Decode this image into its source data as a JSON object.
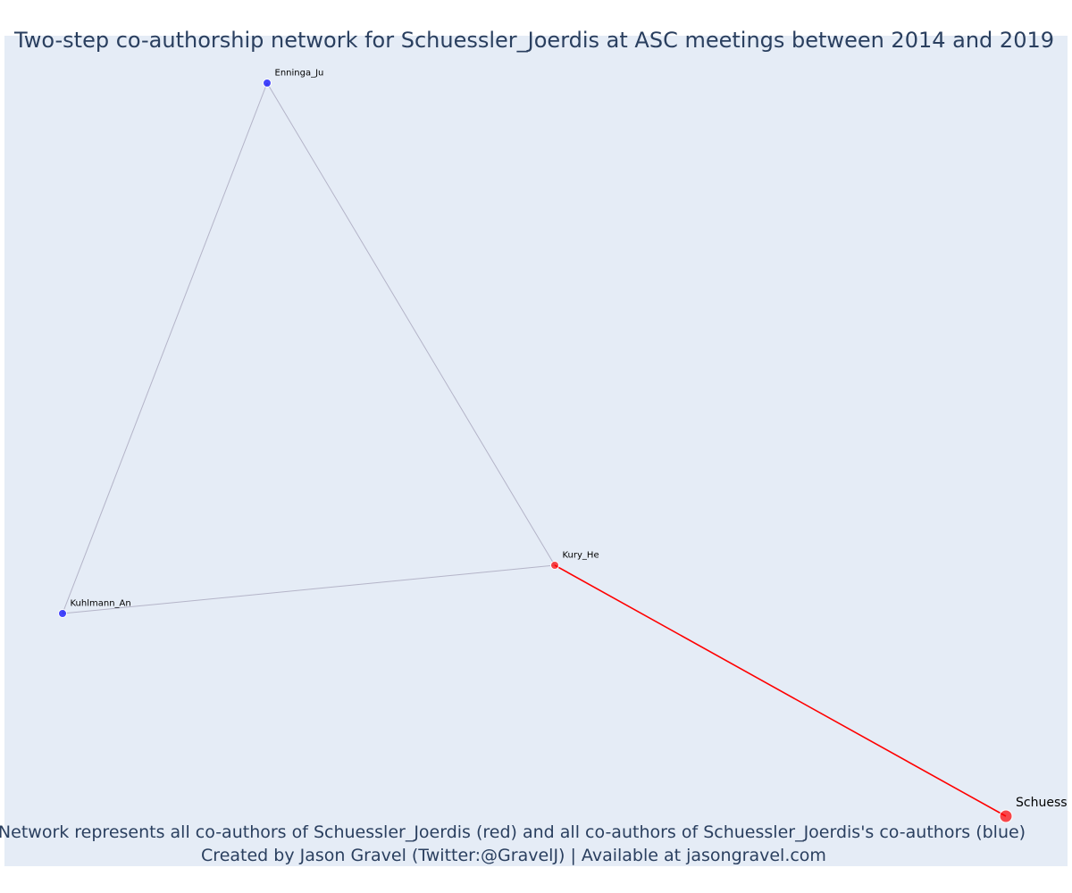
{
  "title": "Two-step co-authorship network for Schuessler_Joerdis at ASC meetings between 2014 and 2019",
  "caption": {
    "line1": "Network represents all co-authors of Schuessler_Joerdis (red) and all co-authors of Schuessler_Joerdis's co-authors (blue)",
    "line2": "Created by Jason Gravel (Twitter:@GravelJ) | Available at jasongravel.com"
  },
  "colors": {
    "plot_background": "#e5ecf6",
    "title_text": "#2a3f5f",
    "red_node": "#ff0000",
    "blue_node": "#0000ff",
    "red_edge": "#ff0000",
    "gray_edge": "#b4b4c8"
  },
  "nodes": [
    {
      "id": "Enninga_Ju",
      "label": "Enninga_Ju",
      "group": "blue",
      "size": "small"
    },
    {
      "id": "Kuhlmann_An",
      "label": "Kuhlmann_An",
      "group": "blue",
      "size": "small"
    },
    {
      "id": "Kury_He",
      "label": "Kury_He",
      "group": "red",
      "size": "small"
    },
    {
      "id": "Schuessler_Joerdis",
      "label": "Schuessler_Joerdis",
      "group": "red",
      "size": "large"
    }
  ],
  "edges": [
    {
      "source": "Enninga_Ju",
      "target": "Kuhlmann_An",
      "color": "gray"
    },
    {
      "source": "Enninga_Ju",
      "target": "Kury_He",
      "color": "gray"
    },
    {
      "source": "Kuhlmann_An",
      "target": "Kury_He",
      "color": "gray"
    },
    {
      "source": "Kury_He",
      "target": "Schuessler_Joerdis",
      "color": "red"
    }
  ]
}
